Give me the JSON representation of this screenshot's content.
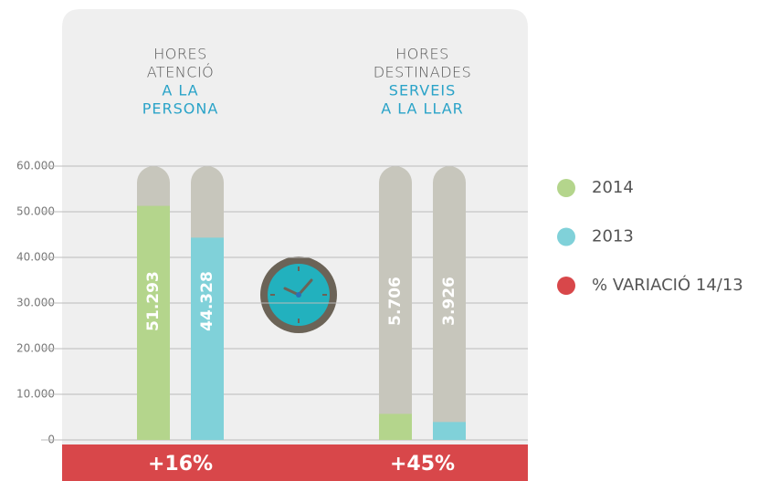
{
  "chart_data": {
    "type": "bar",
    "groups": [
      {
        "title": [
          "HORES",
          "ATENCIÓ"
        ],
        "subtitle": [
          "A LA",
          "PERSONA"
        ]
      },
      {
        "title": [
          "HORES",
          "DESTINADES"
        ],
        "subtitle": [
          "SERVEIS",
          "A LA LLAR"
        ]
      }
    ],
    "series": [
      {
        "name": "2014",
        "color": "#b4d58c",
        "values": [
          51293,
          5706
        ],
        "value_labels": [
          "51.293",
          "5.706"
        ]
      },
      {
        "name": "2013",
        "color": "#80d1d9",
        "values": [
          44328,
          3926
        ],
        "value_labels": [
          "44.328",
          "3.926"
        ]
      }
    ],
    "variation": {
      "name": "% VARIACIÓ 14/13",
      "color": "#d8474a",
      "values": [
        16,
        45
      ],
      "value_labels": [
        "+16%",
        "+45%"
      ]
    },
    "track_color": "#c7c6bc",
    "ylim": [
      0,
      60000
    ],
    "yticks": [
      0,
      {
        "value": 10000,
        "label": "10.000"
      },
      {
        "value": 20000,
        "label": "20.000"
      },
      {
        "value": 30000,
        "label": "30.000"
      },
      {
        "value": 40000,
        "label": "40.000"
      },
      {
        "value": 50000,
        "label": "50.000"
      },
      {
        "value": 60000,
        "label": "60.000"
      }
    ],
    "grid": true
  }
}
